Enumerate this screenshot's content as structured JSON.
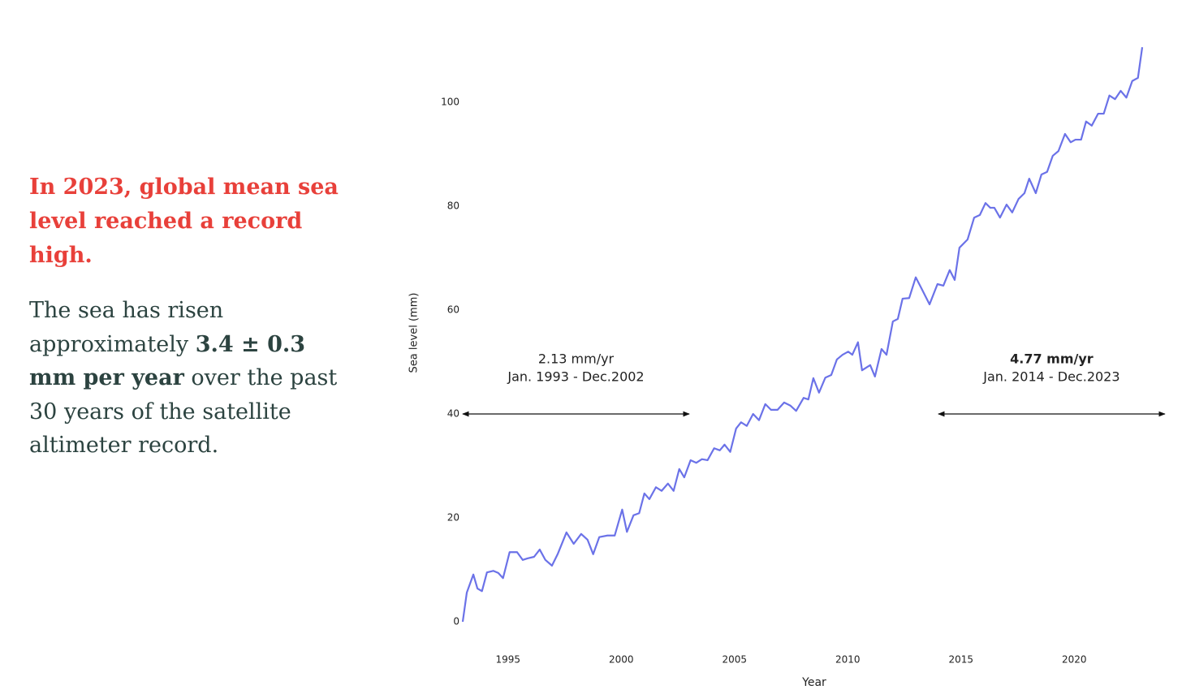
{
  "text_panel": {
    "headline": "In 2023, global mean sea level reached a record high.",
    "body": [
      {
        "text": "The sea has risen approximately "
      },
      {
        "text": "3.4 ± 0.3 mm per year",
        "bold": true
      },
      {
        "text": " over the past 30 years of the satellite altimeter record."
      }
    ]
  },
  "chart_data": {
    "type": "line",
    "x_label": "Year",
    "y_label": "Sea level (mm)",
    "xlim": [
      1992.8,
      2024.2
    ],
    "xticks": [
      1995,
      2000,
      2005,
      2010,
      2015,
      2020
    ],
    "ylim": [
      -2,
      113
    ],
    "yticks": [
      0,
      20,
      40,
      60,
      80,
      100
    ],
    "grid": false,
    "series": [
      {
        "color": "#6b72e8",
        "x": [
          1993.0,
          1993.18,
          1993.47,
          1993.65,
          1993.85,
          1994.07,
          1994.35,
          1994.57,
          1994.78,
          1995.07,
          1995.4,
          1995.65,
          1995.86,
          1996.15,
          1996.4,
          1996.65,
          1996.94,
          1997.19,
          1997.58,
          1997.9,
          1998.23,
          1998.51,
          1998.76,
          1999.03,
          1999.39,
          1999.71,
          2000.04,
          2000.25,
          2000.54,
          2000.79,
          2001.02,
          2001.24,
          2001.53,
          2001.78,
          2002.06,
          2002.31,
          2002.56,
          2002.78,
          2003.06,
          2003.31,
          2003.56,
          2003.81,
          2004.1,
          2004.35,
          2004.56,
          2004.81,
          2005.07,
          2005.29,
          2005.54,
          2005.82,
          2006.08,
          2006.36,
          2006.61,
          2006.9,
          2007.19,
          2007.47,
          2007.72,
          2008.05,
          2008.26,
          2008.48,
          2008.73,
          2009.01,
          2009.27,
          2009.52,
          2009.77,
          2010.02,
          2010.2,
          2010.45,
          2010.63,
          2010.99,
          2011.2,
          2011.49,
          2011.71,
          2011.99,
          2012.21,
          2012.42,
          2012.71,
          2013.0,
          2013.25,
          2013.61,
          2013.96,
          2014.22,
          2014.5,
          2014.72,
          2014.93,
          2015.29,
          2015.58,
          2015.83,
          2016.08,
          2016.29,
          2016.47,
          2016.72,
          2017.01,
          2017.26,
          2017.54,
          2017.8,
          2018.01,
          2018.3,
          2018.55,
          2018.8,
          2019.05,
          2019.3,
          2019.59,
          2019.84,
          2020.05,
          2020.3,
          2020.52,
          2020.77,
          2021.05,
          2021.3,
          2021.55,
          2021.8,
          2022.05,
          2022.3,
          2022.56,
          2022.81,
          2023.0
        ],
        "values": [
          0,
          5.6,
          9.1,
          6.4,
          5.9,
          9.5,
          9.8,
          9.4,
          8.4,
          13.4,
          13.4,
          11.9,
          12.2,
          12.5,
          13.9,
          11.9,
          10.8,
          13.0,
          17.2,
          15.0,
          16.9,
          15.8,
          13.0,
          16.3,
          16.6,
          16.6,
          21.6,
          17.3,
          20.5,
          20.9,
          24.7,
          23.6,
          25.9,
          25.2,
          26.6,
          25.2,
          29.4,
          27.8,
          31.1,
          30.6,
          31.3,
          31.1,
          33.4,
          33.0,
          34.1,
          32.7,
          37.2,
          38.4,
          37.7,
          40.0,
          38.8,
          41.9,
          40.8,
          40.8,
          42.2,
          41.6,
          40.6,
          43.1,
          42.8,
          46.9,
          44.1,
          47.0,
          47.5,
          50.5,
          51.4,
          52.0,
          51.4,
          53.8,
          48.4,
          49.4,
          47.2,
          52.5,
          51.4,
          57.8,
          58.3,
          62.2,
          62.3,
          66.3,
          64.2,
          61.1,
          65.0,
          64.7,
          67.7,
          65.8,
          72.0,
          73.6,
          77.8,
          78.3,
          80.6,
          79.7,
          79.7,
          77.8,
          80.3,
          78.8,
          81.4,
          82.5,
          85.3,
          82.5,
          86.1,
          86.6,
          89.7,
          90.6,
          93.9,
          92.3,
          92.8,
          92.8,
          96.3,
          95.5,
          97.8,
          97.8,
          101.3,
          100.6,
          102.2,
          100.9,
          104.1,
          104.7,
          110.6
        ]
      }
    ],
    "annotations": [
      {
        "label": "2.13 mm/yr",
        "sublabel": "Jan. 1993 - Dec.2002",
        "span": [
          1993,
          2003
        ],
        "y": 40,
        "bold": false
      },
      {
        "label": "4.77 mm/yr",
        "sublabel": "Jan. 2014 - Dec.2023",
        "span": [
          2014,
          2024
        ],
        "y": 40,
        "bold": true
      }
    ]
  }
}
